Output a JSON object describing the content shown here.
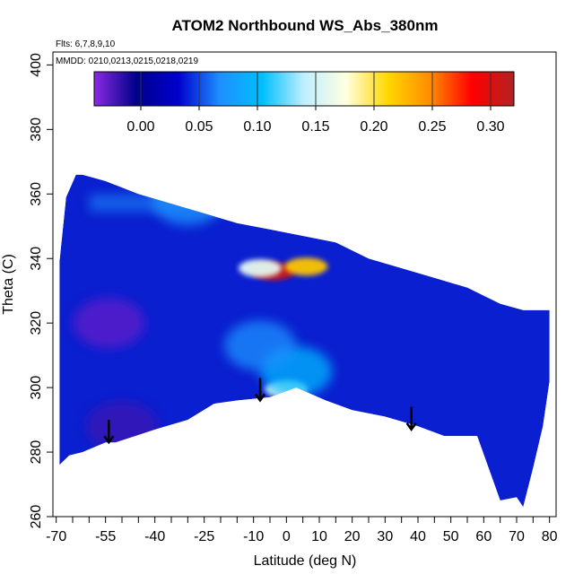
{
  "chart_data": {
    "type": "heatmap",
    "title": "ATOM2 Northbound WS_Abs_380nm",
    "flights_label": "Flts: 6,7,8,9,10",
    "dates_label": "MMDD: 0210,0213,0215,0218,0219",
    "xlabel": "Latitude (deg N)",
    "ylabel": "Theta (C)",
    "xlim": [
      -71,
      82
    ],
    "ylim": [
      260,
      404
    ],
    "x_ticks": [
      -70,
      -55,
      -40,
      -25,
      -10,
      0,
      10,
      20,
      30,
      40,
      50,
      60,
      70,
      80
    ],
    "x_tick_labels": [
      "-70",
      "-55",
      "-40",
      "-25",
      "-10",
      "0",
      "10",
      "20",
      "30",
      "40",
      "50",
      "60",
      "70",
      "80"
    ],
    "x_minor_ticks": [
      -65,
      -60,
      -50,
      -45,
      -35,
      -30,
      -20,
      -15,
      -5,
      5,
      15,
      25,
      35,
      45,
      55,
      65,
      75
    ],
    "y_ticks": [
      260,
      280,
      300,
      320,
      340,
      360,
      380,
      400
    ],
    "y_tick_labels": [
      "260",
      "280",
      "300",
      "320",
      "340",
      "360",
      "380",
      "400"
    ],
    "colorbar": {
      "vmin": -0.04,
      "vmax": 0.32,
      "ticks": [
        0.0,
        0.05,
        0.1,
        0.15,
        0.2,
        0.25,
        0.3
      ],
      "tick_labels": [
        "0.00",
        "0.05",
        "0.10",
        "0.15",
        "0.20",
        "0.25",
        "0.30"
      ],
      "colors": [
        "#8a2be2",
        "#00008b",
        "#0000cd",
        "#1e90ff",
        "#00bfff",
        "#bfefff",
        "#ffffe0",
        "#ffd700",
        "#ff8c00",
        "#ff0000",
        "#b22222"
      ]
    },
    "top_boundary": [
      [
        -69,
        339
      ],
      [
        -67,
        359
      ],
      [
        -64,
        366
      ],
      [
        -62,
        366
      ],
      [
        -55,
        364
      ],
      [
        -45,
        360
      ],
      [
        -35,
        357
      ],
      [
        -25,
        354
      ],
      [
        -15,
        351
      ],
      [
        -5,
        349
      ],
      [
        5,
        347
      ],
      [
        15,
        345
      ],
      [
        25,
        340
      ],
      [
        35,
        337
      ],
      [
        45,
        334
      ],
      [
        55,
        331
      ],
      [
        65,
        326
      ],
      [
        72,
        324
      ],
      [
        80,
        324
      ]
    ],
    "bottom_boundary": [
      [
        80,
        302
      ],
      [
        78,
        288
      ],
      [
        75,
        275
      ],
      [
        72,
        263
      ],
      [
        70,
        266
      ],
      [
        65,
        265
      ],
      [
        58,
        285
      ],
      [
        55,
        285
      ],
      [
        48,
        285
      ],
      [
        40,
        288
      ],
      [
        30,
        291
      ],
      [
        20,
        293
      ],
      [
        12,
        296
      ],
      [
        3,
        300
      ],
      [
        -5,
        297
      ],
      [
        -15,
        296
      ],
      [
        -22,
        295
      ],
      [
        -30,
        290
      ],
      [
        -40,
        287
      ],
      [
        -46,
        285
      ],
      [
        -52,
        283
      ],
      [
        -55,
        283
      ],
      [
        -62,
        280
      ],
      [
        -66,
        279
      ],
      [
        -69,
        276
      ]
    ],
    "features": [
      {
        "lat": -4,
        "theta": 336,
        "value": 0.31
      },
      {
        "lat": 6,
        "theta": 337.5,
        "value": 0.22
      },
      {
        "lat": -8,
        "theta": 337,
        "value": 0.16
      },
      {
        "lat": 0,
        "theta": 299.5,
        "value": 0.16
      },
      {
        "lat": 3,
        "theta": 305,
        "value": 0.1
      },
      {
        "lat": -8,
        "theta": 313,
        "value": 0.07
      },
      {
        "lat": -54,
        "theta": 320,
        "value": -0.03
      },
      {
        "lat": -50,
        "theta": 288,
        "value": -0.02
      },
      {
        "lat": -30,
        "theta": 358,
        "value": 0.07
      }
    ],
    "arrows": [
      {
        "lat": -54,
        "theta_top": 290,
        "theta_bottom": 283
      },
      {
        "lat": -8,
        "theta_top": 303,
        "theta_bottom": 296
      },
      {
        "lat": 38,
        "theta_top": 294,
        "theta_bottom": 287
      }
    ]
  }
}
